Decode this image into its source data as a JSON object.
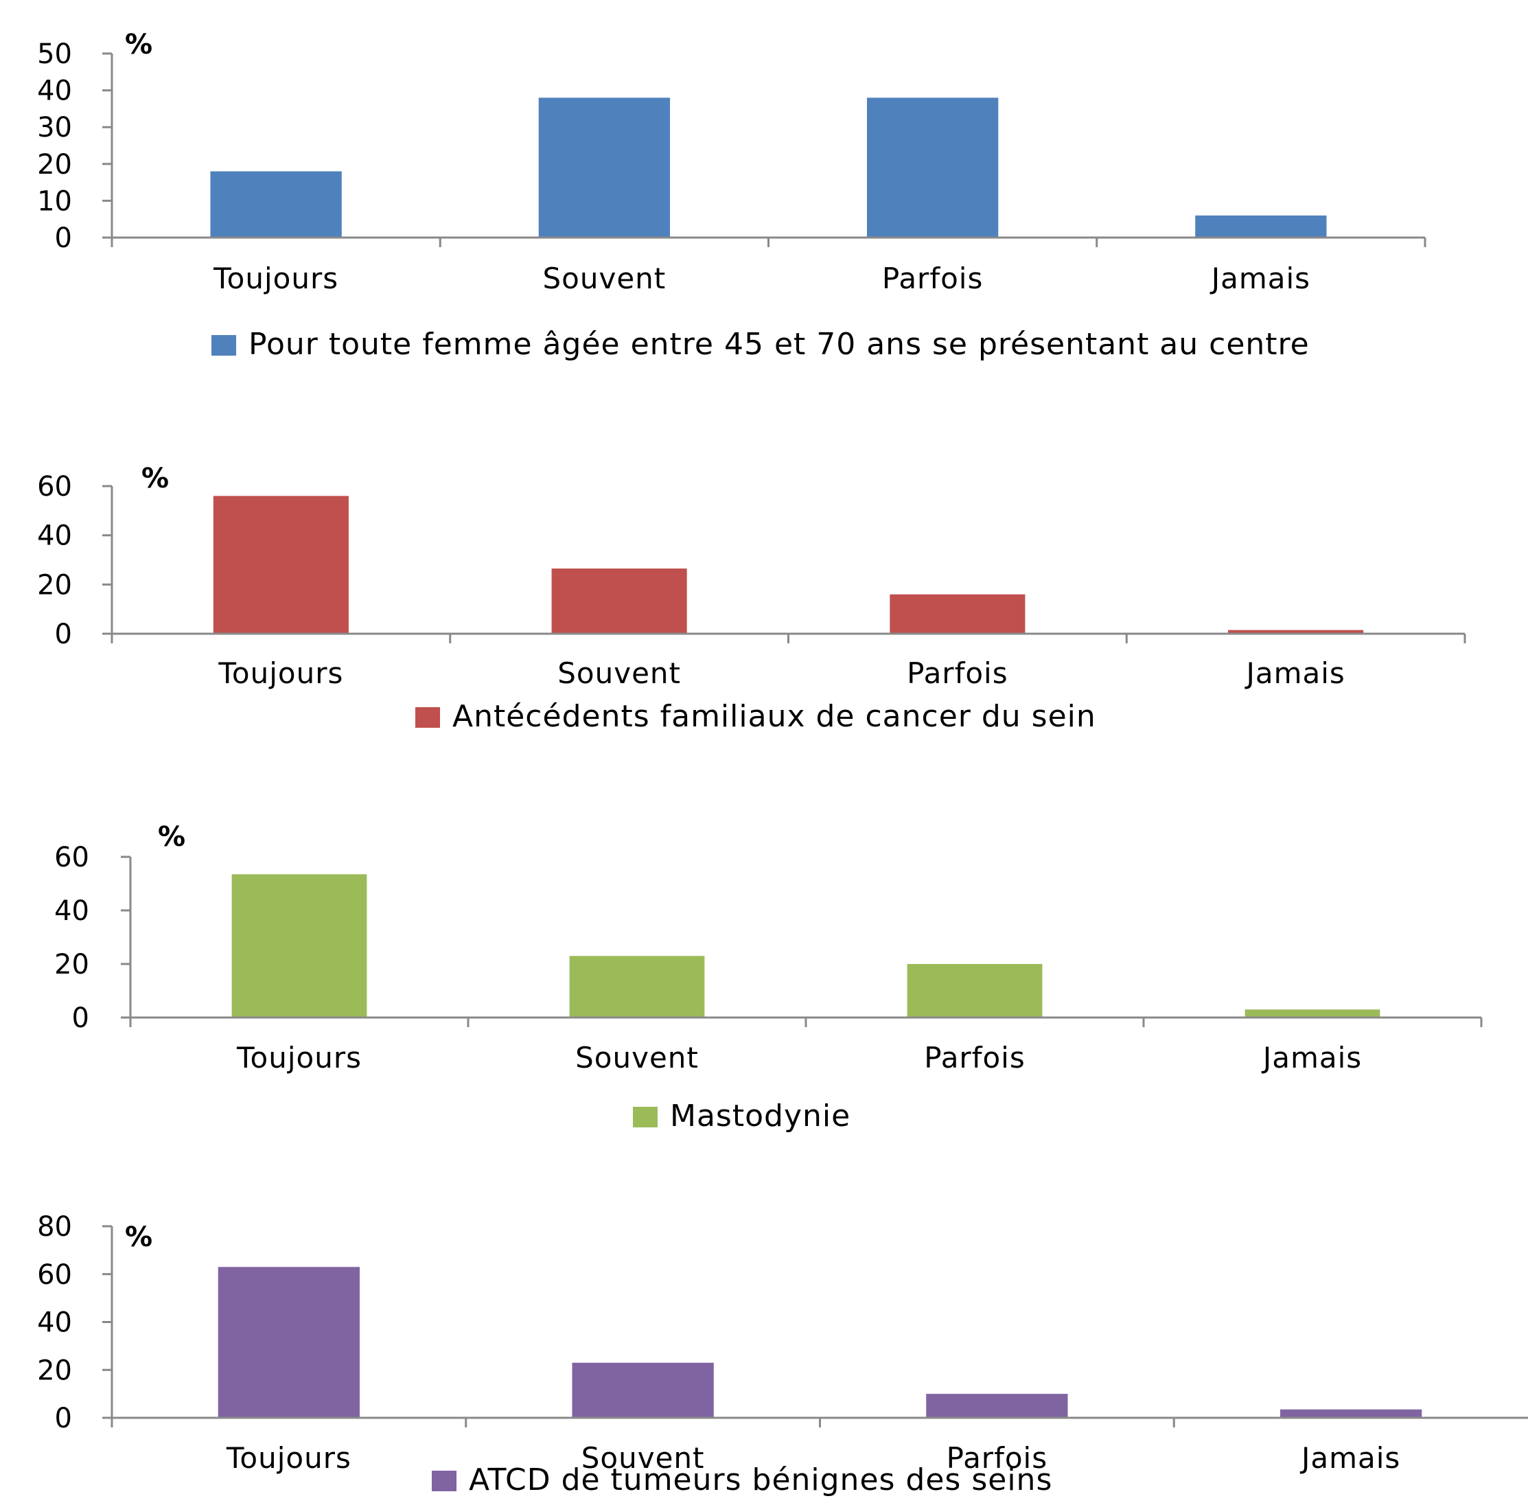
{
  "chart_data": [
    {
      "type": "bar",
      "unit_label": "%",
      "categories": [
        "Toujours",
        "Souvent",
        "Parfois",
        "Jamais"
      ],
      "series": [
        {
          "name": "Pour toute femme âgée entre 45 et 70 ans se présentant au centre",
          "values": [
            18,
            38,
            38,
            6
          ],
          "color": "#4f81bd"
        }
      ],
      "yticks": [
        0,
        10,
        20,
        30,
        40,
        50
      ],
      "ylim": [
        0,
        50
      ],
      "grid": false,
      "legend": "bottom"
    },
    {
      "type": "bar",
      "unit_label": "%",
      "categories": [
        "Toujours",
        "Souvent",
        "Parfois",
        "Jamais"
      ],
      "series": [
        {
          "name": "Antécédents familiaux de cancer du sein",
          "values": [
            56,
            26.5,
            16,
            1.5
          ],
          "color": "#c0504d"
        }
      ],
      "yticks": [
        0,
        20,
        40,
        60
      ],
      "ylim": [
        0,
        60
      ],
      "grid": false,
      "legend": "bottom"
    },
    {
      "type": "bar",
      "unit_label": "%",
      "categories": [
        "Toujours",
        "Souvent",
        "Parfois",
        "Jamais"
      ],
      "series": [
        {
          "name": "Mastodynie",
          "values": [
            53.5,
            23,
            20,
            3
          ],
          "color": "#9bbb59"
        }
      ],
      "yticks": [
        0,
        20,
        40,
        60
      ],
      "ylim": [
        0,
        60
      ],
      "grid": false,
      "legend": "bottom"
    },
    {
      "type": "bar",
      "unit_label": "%",
      "categories": [
        "Toujours",
        "Souvent",
        "Parfois",
        "Jamais"
      ],
      "series": [
        {
          "name": "ATCD de tumeurs bénignes des seins",
          "values": [
            63,
            23,
            10,
            3.5
          ],
          "color": "#8064a2"
        }
      ],
      "yticks": [
        0,
        20,
        40,
        60,
        80
      ],
      "ylim": [
        0,
        80
      ],
      "grid": false,
      "legend": "bottom"
    }
  ]
}
